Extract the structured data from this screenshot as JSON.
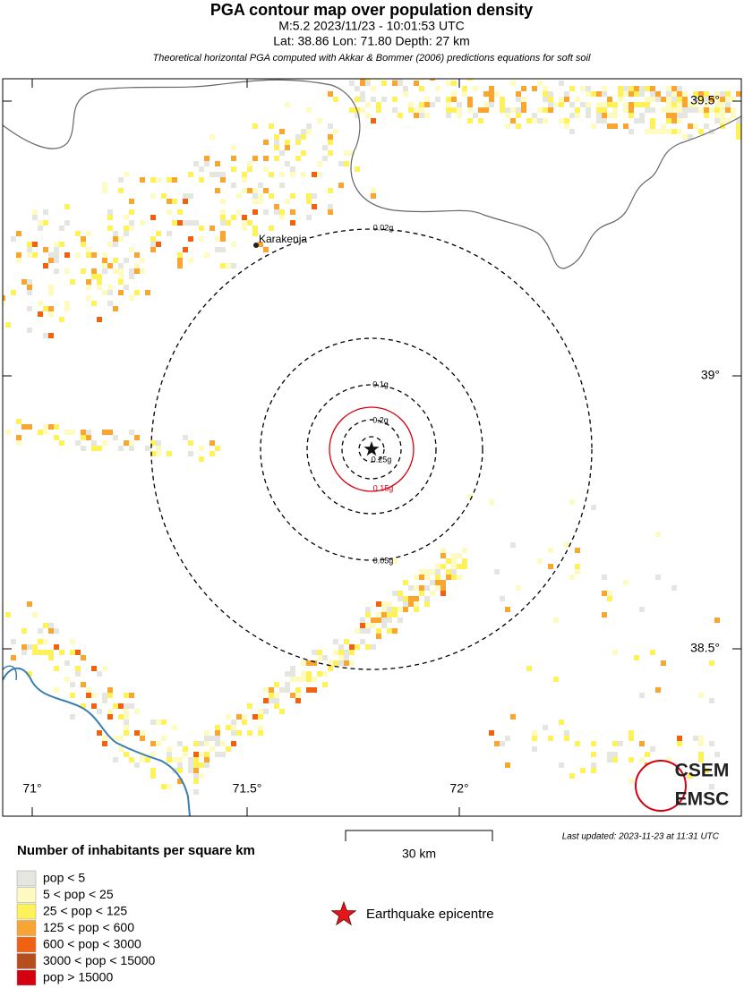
{
  "header": {
    "title": "PGA contour map over population density",
    "subtitle": "M:5.2 2023/11/23 - 10:01:53 UTC",
    "location": "Lat: 38.86 Lon: 71.80 Depth: 27 km",
    "note": "Theoretical horizontal PGA computed with Akkar & Bommer (2006) predictions equations for soft soil"
  },
  "map": {
    "contours": [
      "0.02g",
      "0.05g",
      "0.1g",
      "0.15g",
      "0.2g",
      "0.25g"
    ],
    "city": "Karakenja",
    "lat_labels": [
      "39.5°",
      "39°",
      "38.5°"
    ],
    "lon_labels": [
      "71°",
      "71.5°",
      "72°"
    ],
    "scale": "30 km",
    "last_updated": "Last updated: 2023-11-23 at 11:31 UTC",
    "logo": [
      "CSEM",
      "EMSC"
    ]
  },
  "legend": {
    "title": "Number of inhabitants per square km",
    "items": [
      {
        "label": "pop < 5",
        "color": "#e6e6e0"
      },
      {
        "label": "5 < pop < 25",
        "color": "#fefbc2"
      },
      {
        "label": "25 < pop < 125",
        "color": "#fdf25c"
      },
      {
        "label": "125 < pop < 600",
        "color": "#f8a533"
      },
      {
        "label": "600 < pop < 3000",
        "color": "#ef6212"
      },
      {
        "label": "3000 < pop < 15000",
        "color": "#b5501e"
      },
      {
        "label": "pop > 15000",
        "color": "#d5000f"
      }
    ],
    "epicentre": "Earthquake epicentre"
  }
}
